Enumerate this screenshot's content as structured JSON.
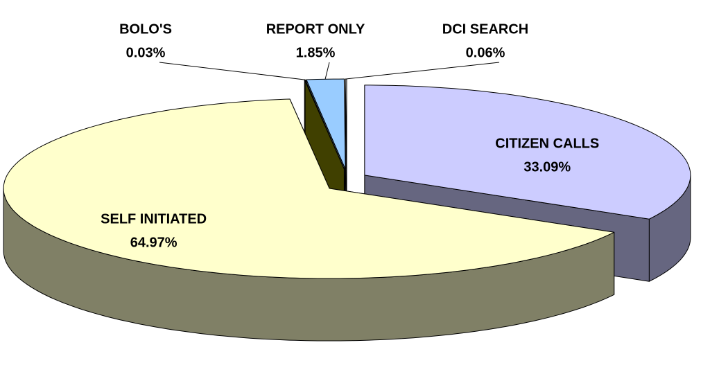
{
  "chart_data": {
    "type": "pie3d",
    "categories": [
      "CITIZEN CALLS",
      "SELF INITIATED",
      "BOLO'S",
      "REPORT ONLY",
      "DCI SEARCH"
    ],
    "values": [
      33.09,
      64.97,
      0.03,
      1.85,
      0.06
    ],
    "value_labels": [
      "33.09%",
      "64.97%",
      "0.03%",
      "1.85%",
      "0.06%"
    ],
    "colors": [
      "#ccccff",
      "#ffffcc",
      "#808000",
      "#99ccff",
      "#ffffff"
    ]
  }
}
